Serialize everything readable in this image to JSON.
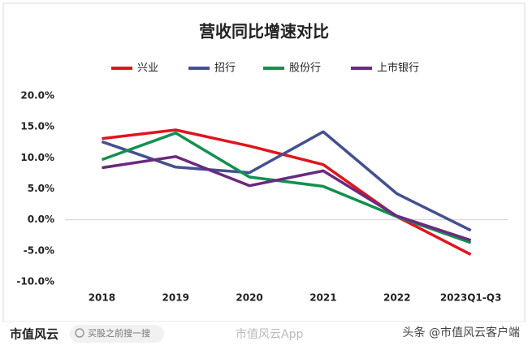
{
  "chart_data": {
    "type": "line",
    "title": "营收同比增速对比",
    "categories": [
      "2018",
      "2019",
      "2020",
      "2021",
      "2022",
      "2023Q1-Q3"
    ],
    "series": [
      {
        "name": "兴业",
        "color": "#e0141e",
        "values": [
          13.1,
          14.5,
          11.9,
          8.9,
          0.5,
          -5.6
        ]
      },
      {
        "name": "招行",
        "color": "#44508f",
        "values": [
          12.6,
          8.5,
          7.6,
          14.2,
          4.2,
          -1.7
        ]
      },
      {
        "name": "股份行",
        "color": "#13904f",
        "values": [
          9.7,
          14.0,
          6.9,
          5.4,
          0.5,
          -3.7
        ]
      },
      {
        "name": "上市银行",
        "color": "#6a2a7f",
        "values": [
          8.4,
          10.2,
          5.5,
          7.9,
          0.6,
          -3.3
        ]
      }
    ],
    "ylim": [
      -10,
      20
    ],
    "yticks": [
      {
        "value": 20,
        "label": "20.0%"
      },
      {
        "value": 15,
        "label": "15.0%"
      },
      {
        "value": 10,
        "label": "10.0%"
      },
      {
        "value": 5,
        "label": "5.0%"
      },
      {
        "value": 0,
        "label": "0.0%"
      },
      {
        "value": -5,
        "label": "-5.0%"
      },
      {
        "value": -10,
        "label": "-10.0%"
      }
    ],
    "grid": false,
    "legend": "top"
  },
  "footer": {
    "logo": "市值风云",
    "search": "买股之前搜一搜",
    "center": "市值风云App",
    "right": "头条 @市值风云客户端"
  }
}
